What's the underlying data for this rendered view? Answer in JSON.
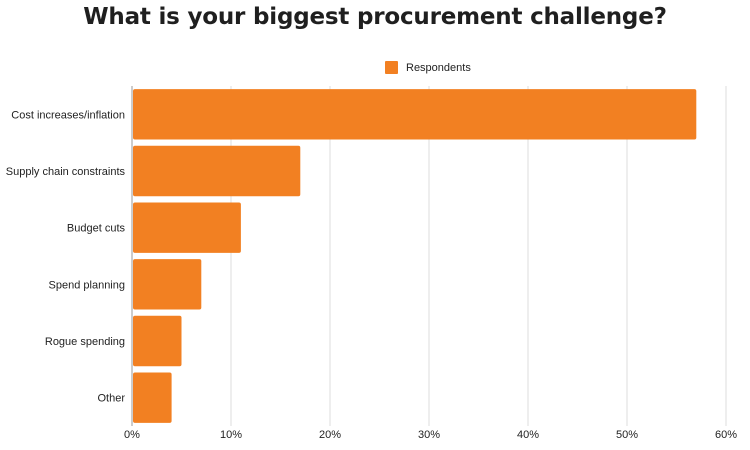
{
  "chart_data": {
    "type": "bar",
    "orientation": "horizontal",
    "title": "What is your biggest procurement challenge?",
    "categories": [
      "Cost increases/inflation",
      "Supply chain constraints",
      "Budget cuts",
      "Spend planning",
      "Rogue spending",
      "Other"
    ],
    "series": [
      {
        "name": "Respondents",
        "values": [
          57,
          17,
          11,
          7,
          5,
          4
        ]
      }
    ],
    "xlim": [
      0,
      60
    ],
    "xticks": [
      "0%",
      "10%",
      "20%",
      "30%",
      "40%",
      "50%",
      "60%"
    ],
    "grid": true,
    "legend_position": "top-center",
    "colors": {
      "bar": "#f28022",
      "grid": "#dddddd",
      "axis": "#999999"
    }
  }
}
